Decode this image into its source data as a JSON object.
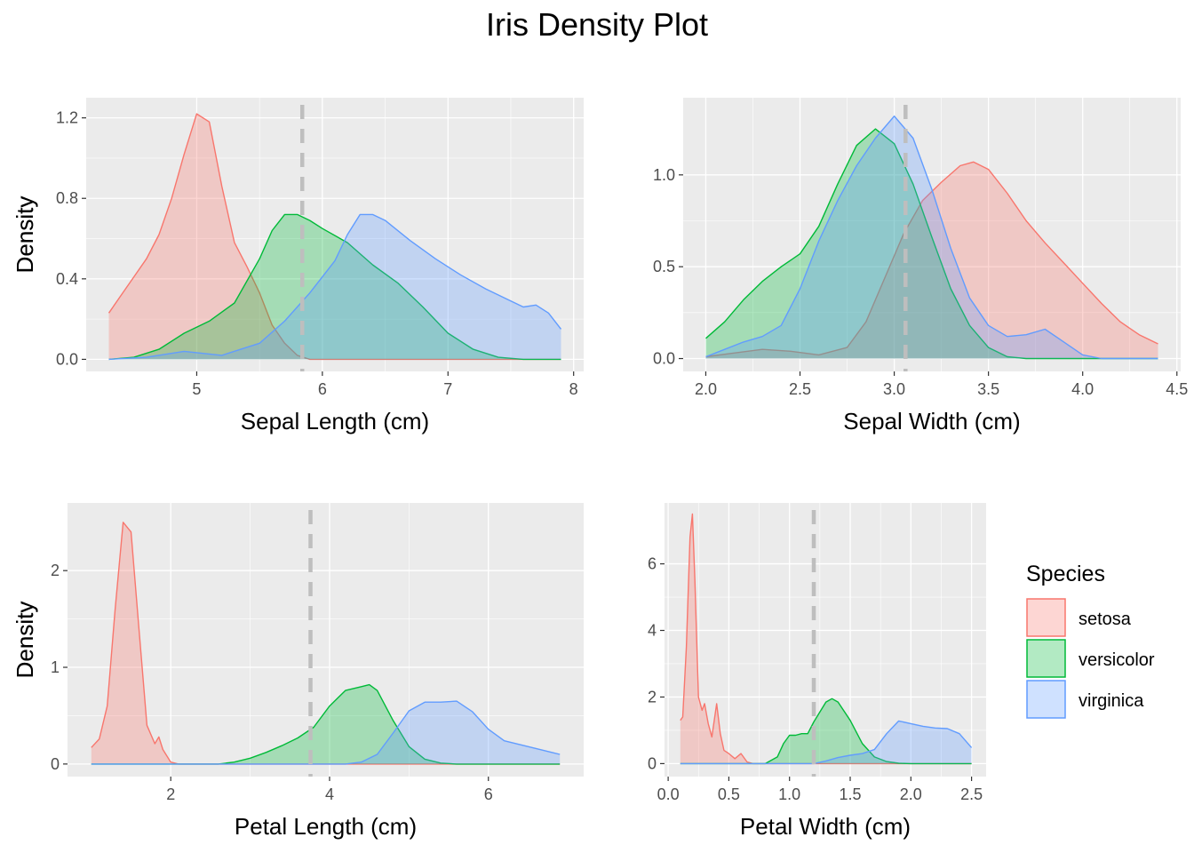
{
  "title": "Iris Density Plot",
  "legend": {
    "title": "Species",
    "items": [
      {
        "label": "setosa",
        "color": "#F8766D"
      },
      {
        "label": "versicolor",
        "color": "#00BA38"
      },
      {
        "label": "virginica",
        "color": "#619CFF"
      }
    ]
  },
  "chart_data": [
    {
      "type": "area",
      "xlabel": "Sepal Length (cm)",
      "ylabel": "Density",
      "xlim": [
        4.12,
        8.08
      ],
      "ylim": [
        -0.06,
        1.3
      ],
      "xticks": [
        5,
        6,
        7,
        8
      ],
      "xtick_labels": [
        "5",
        "6",
        "7",
        "8"
      ],
      "yticks": [
        0.0,
        0.4,
        0.8,
        1.2
      ],
      "ytick_labels": [
        "0.0",
        "0.4",
        "0.8",
        "1.2"
      ],
      "mean_line": 5.84,
      "series": [
        {
          "name": "setosa",
          "points": [
            [
              4.3,
              0.23
            ],
            [
              4.4,
              0.32
            ],
            [
              4.5,
              0.41
            ],
            [
              4.6,
              0.5
            ],
            [
              4.7,
              0.62
            ],
            [
              4.8,
              0.8
            ],
            [
              4.9,
              1.02
            ],
            [
              5.0,
              1.22
            ],
            [
              5.1,
              1.18
            ],
            [
              5.2,
              0.86
            ],
            [
              5.3,
              0.58
            ],
            [
              5.4,
              0.46
            ],
            [
              5.5,
              0.33
            ],
            [
              5.6,
              0.17
            ],
            [
              5.7,
              0.08
            ],
            [
              5.8,
              0.02
            ],
            [
              5.9,
              0.0
            ],
            [
              6.0,
              0.0
            ],
            [
              7.9,
              0.0
            ]
          ]
        },
        {
          "name": "versicolor",
          "points": [
            [
              4.3,
              0.0
            ],
            [
              4.5,
              0.01
            ],
            [
              4.7,
              0.05
            ],
            [
              4.9,
              0.13
            ],
            [
              5.1,
              0.19
            ],
            [
              5.3,
              0.28
            ],
            [
              5.5,
              0.5
            ],
            [
              5.6,
              0.64
            ],
            [
              5.7,
              0.72
            ],
            [
              5.8,
              0.72
            ],
            [
              5.9,
              0.69
            ],
            [
              6.0,
              0.65
            ],
            [
              6.2,
              0.58
            ],
            [
              6.4,
              0.47
            ],
            [
              6.6,
              0.38
            ],
            [
              6.8,
              0.26
            ],
            [
              7.0,
              0.13
            ],
            [
              7.2,
              0.05
            ],
            [
              7.4,
              0.01
            ],
            [
              7.6,
              0.0
            ],
            [
              7.9,
              0.0
            ]
          ]
        },
        {
          "name": "virginica",
          "points": [
            [
              4.3,
              0.0
            ],
            [
              4.6,
              0.01
            ],
            [
              4.9,
              0.04
            ],
            [
              5.2,
              0.02
            ],
            [
              5.5,
              0.08
            ],
            [
              5.7,
              0.19
            ],
            [
              5.9,
              0.33
            ],
            [
              6.1,
              0.49
            ],
            [
              6.2,
              0.62
            ],
            [
              6.3,
              0.72
            ],
            [
              6.4,
              0.72
            ],
            [
              6.5,
              0.69
            ],
            [
              6.7,
              0.59
            ],
            [
              6.9,
              0.5
            ],
            [
              7.1,
              0.42
            ],
            [
              7.3,
              0.35
            ],
            [
              7.5,
              0.29
            ],
            [
              7.6,
              0.26
            ],
            [
              7.7,
              0.27
            ],
            [
              7.8,
              0.23
            ],
            [
              7.9,
              0.15
            ]
          ]
        }
      ]
    },
    {
      "type": "area",
      "xlabel": "Sepal Width (cm)",
      "ylabel": "Density",
      "xlim": [
        1.88,
        4.52
      ],
      "ylim": [
        -0.07,
        1.42
      ],
      "xticks": [
        2.0,
        2.5,
        3.0,
        3.5,
        4.0,
        4.5
      ],
      "xtick_labels": [
        "2.0",
        "2.5",
        "3.0",
        "3.5",
        "4.0",
        "4.5"
      ],
      "yticks": [
        0.0,
        0.5,
        1.0
      ],
      "ytick_labels": [
        "0.0",
        "0.5",
        "1.0"
      ],
      "mean_line": 3.06,
      "series": [
        {
          "name": "setosa",
          "points": [
            [
              2.0,
              0.01
            ],
            [
              2.15,
              0.03
            ],
            [
              2.3,
              0.05
            ],
            [
              2.45,
              0.04
            ],
            [
              2.6,
              0.02
            ],
            [
              2.75,
              0.06
            ],
            [
              2.85,
              0.2
            ],
            [
              2.95,
              0.44
            ],
            [
              3.05,
              0.68
            ],
            [
              3.15,
              0.86
            ],
            [
              3.25,
              0.96
            ],
            [
              3.35,
              1.05
            ],
            [
              3.42,
              1.07
            ],
            [
              3.5,
              1.03
            ],
            [
              3.6,
              0.9
            ],
            [
              3.7,
              0.75
            ],
            [
              3.8,
              0.63
            ],
            [
              3.9,
              0.52
            ],
            [
              4.0,
              0.41
            ],
            [
              4.1,
              0.3
            ],
            [
              4.2,
              0.2
            ],
            [
              4.3,
              0.13
            ],
            [
              4.4,
              0.08
            ]
          ]
        },
        {
          "name": "versicolor",
          "points": [
            [
              2.0,
              0.11
            ],
            [
              2.1,
              0.2
            ],
            [
              2.2,
              0.32
            ],
            [
              2.3,
              0.42
            ],
            [
              2.4,
              0.5
            ],
            [
              2.5,
              0.57
            ],
            [
              2.6,
              0.72
            ],
            [
              2.7,
              0.95
            ],
            [
              2.8,
              1.16
            ],
            [
              2.9,
              1.25
            ],
            [
              3.0,
              1.17
            ],
            [
              3.1,
              0.95
            ],
            [
              3.2,
              0.66
            ],
            [
              3.3,
              0.38
            ],
            [
              3.4,
              0.18
            ],
            [
              3.5,
              0.06
            ],
            [
              3.6,
              0.01
            ],
            [
              3.7,
              0.0
            ],
            [
              4.4,
              0.0
            ]
          ]
        },
        {
          "name": "virginica",
          "points": [
            [
              2.0,
              0.01
            ],
            [
              2.1,
              0.05
            ],
            [
              2.2,
              0.09
            ],
            [
              2.3,
              0.12
            ],
            [
              2.4,
              0.18
            ],
            [
              2.5,
              0.38
            ],
            [
              2.6,
              0.64
            ],
            [
              2.7,
              0.86
            ],
            [
              2.8,
              1.05
            ],
            [
              2.9,
              1.2
            ],
            [
              3.0,
              1.32
            ],
            [
              3.1,
              1.2
            ],
            [
              3.2,
              0.92
            ],
            [
              3.3,
              0.6
            ],
            [
              3.4,
              0.33
            ],
            [
              3.5,
              0.18
            ],
            [
              3.6,
              0.12
            ],
            [
              3.7,
              0.13
            ],
            [
              3.8,
              0.16
            ],
            [
              3.9,
              0.09
            ],
            [
              4.0,
              0.02
            ],
            [
              4.1,
              0.0
            ],
            [
              4.4,
              0.0
            ]
          ]
        }
      ]
    },
    {
      "type": "area",
      "xlabel": "Petal Length (cm)",
      "ylabel": "Density",
      "xlim": [
        0.7,
        7.2
      ],
      "ylim": [
        -0.13,
        2.7
      ],
      "xticks": [
        2,
        4,
        6
      ],
      "xtick_labels": [
        "2",
        "4",
        "6"
      ],
      "yticks": [
        0,
        1,
        2
      ],
      "ytick_labels": [
        "0",
        "1",
        "2"
      ],
      "mean_line": 3.76,
      "series": [
        {
          "name": "setosa",
          "points": [
            [
              1.0,
              0.17
            ],
            [
              1.1,
              0.26
            ],
            [
              1.2,
              0.6
            ],
            [
              1.3,
              1.6
            ],
            [
              1.4,
              2.5
            ],
            [
              1.5,
              2.4
            ],
            [
              1.6,
              1.4
            ],
            [
              1.7,
              0.4
            ],
            [
              1.8,
              0.21
            ],
            [
              1.85,
              0.28
            ],
            [
              1.9,
              0.15
            ],
            [
              2.0,
              0.02
            ],
            [
              2.1,
              0.0
            ],
            [
              6.9,
              0.0
            ]
          ]
        },
        {
          "name": "versicolor",
          "points": [
            [
              1.0,
              0.0
            ],
            [
              2.6,
              0.0
            ],
            [
              2.8,
              0.02
            ],
            [
              3.0,
              0.06
            ],
            [
              3.2,
              0.12
            ],
            [
              3.4,
              0.19
            ],
            [
              3.6,
              0.27
            ],
            [
              3.8,
              0.38
            ],
            [
              4.0,
              0.6
            ],
            [
              4.2,
              0.76
            ],
            [
              4.4,
              0.8
            ],
            [
              4.5,
              0.82
            ],
            [
              4.6,
              0.76
            ],
            [
              4.8,
              0.45
            ],
            [
              5.0,
              0.18
            ],
            [
              5.2,
              0.05
            ],
            [
              5.4,
              0.01
            ],
            [
              5.6,
              0.0
            ],
            [
              6.9,
              0.0
            ]
          ]
        },
        {
          "name": "virginica",
          "points": [
            [
              1.0,
              0.0
            ],
            [
              4.2,
              0.0
            ],
            [
              4.4,
              0.02
            ],
            [
              4.6,
              0.1
            ],
            [
              4.8,
              0.32
            ],
            [
              5.0,
              0.55
            ],
            [
              5.2,
              0.64
            ],
            [
              5.4,
              0.64
            ],
            [
              5.6,
              0.65
            ],
            [
              5.8,
              0.54
            ],
            [
              6.0,
              0.36
            ],
            [
              6.2,
              0.24
            ],
            [
              6.4,
              0.2
            ],
            [
              6.6,
              0.16
            ],
            [
              6.8,
              0.12
            ],
            [
              6.9,
              0.1
            ]
          ]
        }
      ]
    },
    {
      "type": "area",
      "xlabel": "Petal Width (cm)",
      "ylabel": "Density",
      "xlim": [
        -0.03,
        2.62
      ],
      "ylim": [
        -0.39,
        7.83
      ],
      "xticks": [
        0.0,
        0.5,
        1.0,
        1.5,
        2.0,
        2.5
      ],
      "xtick_labels": [
        "0.0",
        "0.5",
        "1.0",
        "1.5",
        "2.0",
        "2.5"
      ],
      "yticks": [
        0,
        2,
        4,
        6
      ],
      "ytick_labels": [
        "0",
        "2",
        "4",
        "6"
      ],
      "mean_line": 1.2,
      "series": [
        {
          "name": "setosa",
          "points": [
            [
              0.1,
              1.3
            ],
            [
              0.12,
              1.4
            ],
            [
              0.15,
              3.5
            ],
            [
              0.18,
              6.8
            ],
            [
              0.2,
              7.5
            ],
            [
              0.22,
              5.5
            ],
            [
              0.25,
              2.0
            ],
            [
              0.28,
              1.6
            ],
            [
              0.3,
              1.8
            ],
            [
              0.33,
              1.2
            ],
            [
              0.36,
              0.8
            ],
            [
              0.4,
              1.8
            ],
            [
              0.43,
              0.9
            ],
            [
              0.46,
              0.4
            ],
            [
              0.5,
              0.3
            ],
            [
              0.55,
              0.15
            ],
            [
              0.6,
              0.3
            ],
            [
              0.65,
              0.05
            ],
            [
              0.7,
              0.0
            ],
            [
              2.5,
              0.0
            ]
          ]
        },
        {
          "name": "versicolor",
          "points": [
            [
              0.1,
              0.0
            ],
            [
              0.8,
              0.0
            ],
            [
              0.9,
              0.2
            ],
            [
              0.95,
              0.6
            ],
            [
              1.0,
              0.85
            ],
            [
              1.05,
              0.85
            ],
            [
              1.1,
              0.9
            ],
            [
              1.15,
              0.9
            ],
            [
              1.2,
              1.25
            ],
            [
              1.3,
              1.85
            ],
            [
              1.35,
              1.95
            ],
            [
              1.4,
              1.85
            ],
            [
              1.5,
              1.3
            ],
            [
              1.6,
              0.6
            ],
            [
              1.7,
              0.2
            ],
            [
              1.8,
              0.06
            ],
            [
              1.9,
              0.01
            ],
            [
              2.0,
              0.0
            ],
            [
              2.5,
              0.0
            ]
          ]
        },
        {
          "name": "virginica",
          "points": [
            [
              0.1,
              0.0
            ],
            [
              1.2,
              0.0
            ],
            [
              1.3,
              0.08
            ],
            [
              1.4,
              0.18
            ],
            [
              1.5,
              0.25
            ],
            [
              1.6,
              0.3
            ],
            [
              1.7,
              0.42
            ],
            [
              1.8,
              0.9
            ],
            [
              1.9,
              1.28
            ],
            [
              2.0,
              1.2
            ],
            [
              2.1,
              1.12
            ],
            [
              2.2,
              1.07
            ],
            [
              2.3,
              1.05
            ],
            [
              2.4,
              0.9
            ],
            [
              2.5,
              0.48
            ]
          ]
        }
      ]
    }
  ]
}
